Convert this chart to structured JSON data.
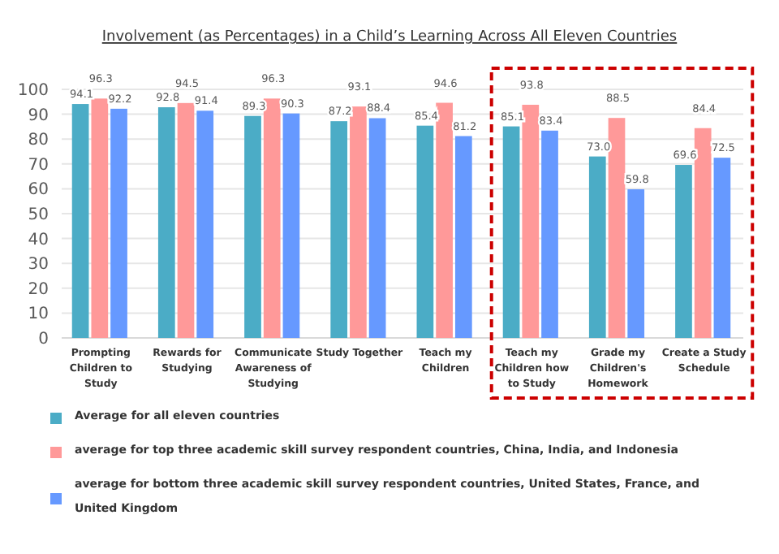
{
  "chart_data": {
    "type": "bar",
    "title": "Involvement (as Percentages) in a Child’s Learning Across All Eleven Countries",
    "categories": [
      "Prompting Children to Study",
      "Rewards for Studying",
      "Communicate Awareness of Studying",
      "Study Together",
      "Teach my Children",
      "Teach my Children how to Study",
      "Grade my Children's Homework",
      "Create a Study Schedule"
    ],
    "series": [
      {
        "name": "Average for all eleven countries",
        "color": "#4bacc6",
        "values": [
          94.1,
          92.8,
          89.3,
          87.2,
          85.4,
          85.1,
          73.0,
          69.6
        ],
        "value_labels": [
          "94.1",
          "92.8",
          "89.3",
          "87.2",
          "85.4",
          "85.1",
          "73.0",
          "69.6"
        ]
      },
      {
        "name": "average for top three academic skill survey respondent countries, China, India, and Indonesia",
        "color": "#ff9999",
        "values": [
          96.3,
          94.5,
          96.3,
          93.1,
          94.6,
          93.8,
          88.5,
          84.4
        ],
        "value_labels": [
          "96.3",
          "94.5",
          "96.3",
          "93.1",
          "94.6",
          "93.8",
          "88.5",
          "84.4"
        ]
      },
      {
        "name": "average for bottom three academic skill survey respondent countries, United States, France, and United Kingdom",
        "color": "#6699ff",
        "values": [
          92.2,
          91.4,
          90.3,
          88.4,
          81.2,
          83.4,
          59.8,
          72.5
        ],
        "value_labels": [
          "92.2",
          "91.4",
          "90.3",
          "88.4",
          "81.2",
          "83.4",
          "59.8",
          "72.5"
        ]
      }
    ],
    "ylim": [
      0,
      100
    ],
    "yticks": [
      0,
      10,
      20,
      30,
      40,
      50,
      60,
      70,
      80,
      90,
      100
    ],
    "grid": "y",
    "legend": "bottom"
  }
}
